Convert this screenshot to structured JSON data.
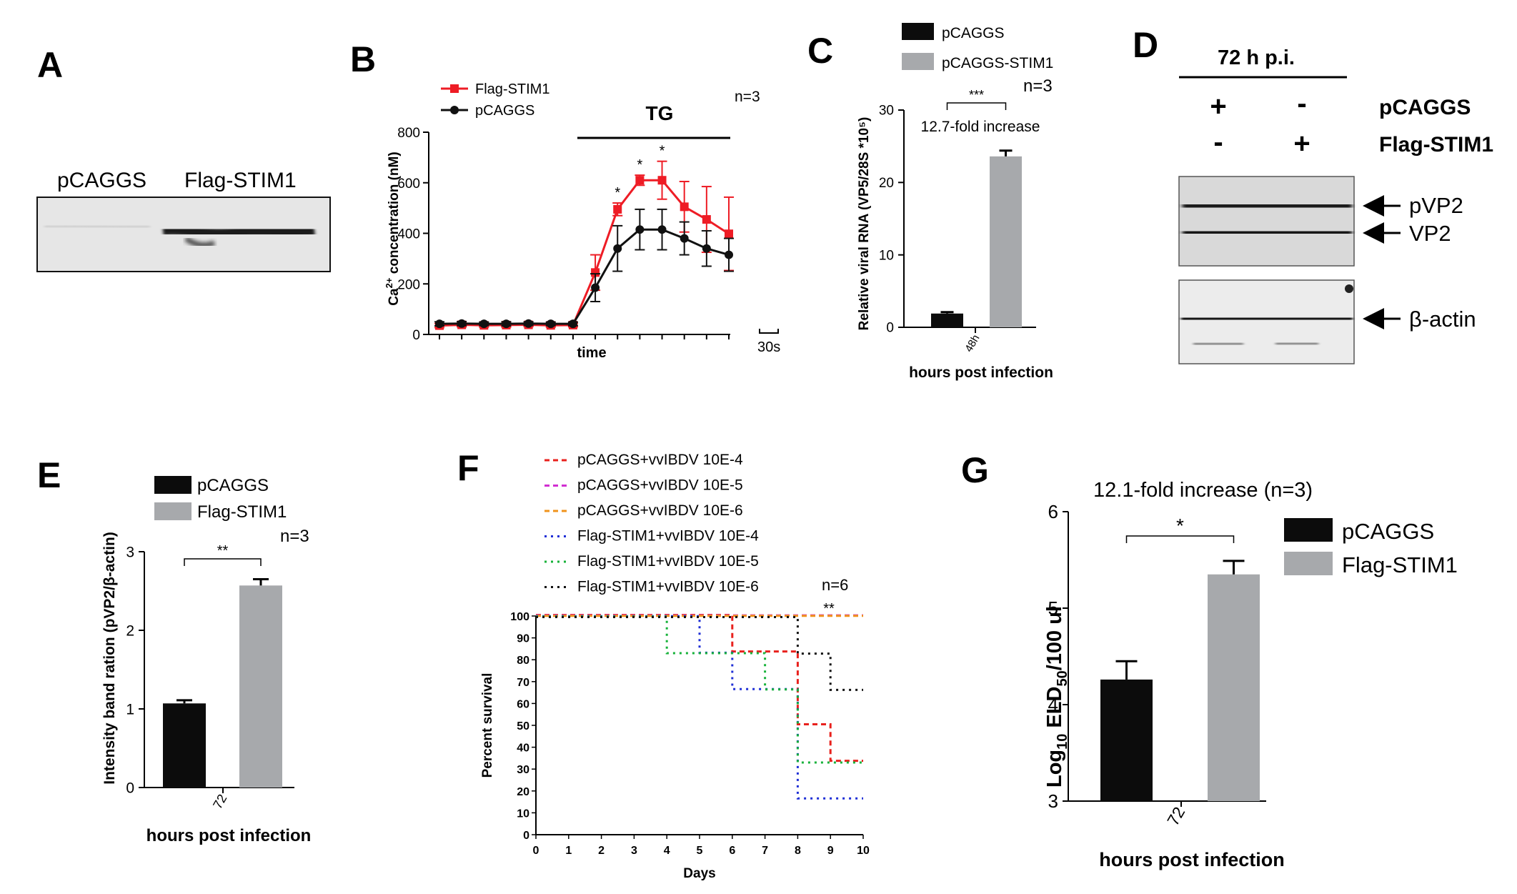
{
  "figure": {
    "panel_letters": [
      "A",
      "B",
      "C",
      "D",
      "E",
      "F",
      "G"
    ]
  },
  "colors": {
    "red": "#ee1c25",
    "black": "#111111",
    "gray": "#a7a9ac",
    "dark_bar": "#0c0c0c"
  },
  "panelA": {
    "lanes": [
      "pCAGGS",
      "Flag-STIM1"
    ]
  },
  "panelD": {
    "header": "72 h p.i.",
    "row_labels": [
      "pCAGGS",
      "Flag-STIM1"
    ],
    "row1_signs": [
      "+",
      "-"
    ],
    "row2_signs": [
      "-",
      "+"
    ],
    "band_labels": [
      "pVP2",
      "VP2",
      "β-actin"
    ]
  },
  "chart_data": [
    {
      "panel": "B",
      "type": "line",
      "ylabel_prefix": "Ca",
      "ylabel_sup": "2+",
      "ylabel_suffix": " concentration (nM)",
      "xlabel": "time",
      "ylim": [
        0,
        800
      ],
      "yticks": [
        0,
        200,
        400,
        600,
        800
      ],
      "treatment": "TG",
      "n_label": "n=3",
      "scale_label": "30s",
      "x": [
        0,
        1,
        2,
        3,
        4,
        5,
        6,
        7,
        8,
        9,
        10,
        11,
        12,
        13
      ],
      "series": [
        {
          "name": "Flag-STIM1",
          "color": "#ee1c25",
          "marker": "square",
          "values": [
            35,
            38,
            36,
            37,
            38,
            36,
            37,
            245,
            495,
            610,
            610,
            505,
            455,
            398
          ],
          "errors": [
            8,
            8,
            7,
            8,
            7,
            7,
            7,
            70,
            25,
            20,
            75,
            100,
            130,
            145
          ]
        },
        {
          "name": "pCAGGS",
          "color": "#111111",
          "marker": "circle",
          "values": [
            42,
            43,
            42,
            42,
            43,
            42,
            42,
            185,
            340,
            415,
            415,
            380,
            340,
            315
          ],
          "errors": [
            8,
            8,
            7,
            8,
            7,
            7,
            7,
            55,
            90,
            80,
            80,
            65,
            70,
            65
          ]
        }
      ],
      "significance": [
        {
          "x": 8,
          "label": "*"
        },
        {
          "x": 9,
          "label": "*"
        },
        {
          "x": 10,
          "label": "*"
        }
      ]
    },
    {
      "panel": "C",
      "type": "bar",
      "ylabel": "Relative viral RNA (VP5/28S *10⁵)",
      "xlabel": "hours post infection",
      "categories": [
        "48h"
      ],
      "ylim": [
        0,
        30
      ],
      "yticks": [
        0,
        10,
        20,
        30
      ],
      "series": [
        {
          "name": "pCAGGS",
          "color": "#0c0c0c",
          "values": [
            1.9
          ],
          "errors": [
            0.2
          ]
        },
        {
          "name": "pCAGGS-STIM1",
          "color": "#a7a9ac",
          "values": [
            23.6
          ],
          "errors": [
            0.8
          ]
        }
      ],
      "n_label": "n=3",
      "significance": "***",
      "annotation": "12.7-fold increase"
    },
    {
      "panel": "E",
      "type": "bar",
      "ylabel": "Intensity band ration (pVP2/β-actin)",
      "xlabel": "hours post infection",
      "categories": [
        "72"
      ],
      "ylim": [
        0,
        3
      ],
      "yticks": [
        0,
        1,
        2,
        3
      ],
      "series": [
        {
          "name": "pCAGGS",
          "color": "#0c0c0c",
          "values": [
            1.07
          ],
          "errors": [
            0.04
          ]
        },
        {
          "name": "Flag-STIM1",
          "color": "#a7a9ac",
          "values": [
            2.57
          ],
          "errors": [
            0.08
          ]
        }
      ],
      "n_label": "n=3",
      "significance": "**"
    },
    {
      "panel": "F",
      "type": "line",
      "ylabel": "Percent survival",
      "xlabel": "Days",
      "xlim": [
        0,
        10
      ],
      "xticks": [
        0,
        1,
        2,
        3,
        4,
        5,
        6,
        7,
        8,
        9,
        10
      ],
      "ylim": [
        0,
        100
      ],
      "yticks": [
        0,
        10,
        20,
        30,
        40,
        50,
        60,
        70,
        80,
        90,
        100
      ],
      "n_label": "n=6",
      "significance": "**",
      "series": [
        {
          "name": "pCAGGS+vvIBDV 10E-4",
          "color": "#e8211d",
          "steps": [
            [
              0,
              100
            ],
            [
              6,
              83.3
            ],
            [
              8,
              50
            ],
            [
              9,
              33.3
            ],
            [
              10,
              33.3
            ]
          ]
        },
        {
          "name": "pCAGGS+vvIBDV 10E-5",
          "color": "#d12ed1",
          "steps": [
            [
              0,
              100
            ],
            [
              10,
              100
            ]
          ]
        },
        {
          "name": "pCAGGS+vvIBDV 10E-6",
          "color": "#f0931c",
          "steps": [
            [
              0,
              100
            ],
            [
              10,
              100
            ]
          ]
        },
        {
          "name": "Flag-STIM1+vvIBDV 10E-4",
          "color": "#1f2fd6",
          "steps": [
            [
              0,
              100
            ],
            [
              5,
              83.3
            ],
            [
              6,
              66.7
            ],
            [
              8,
              16.7
            ],
            [
              10,
              16.7
            ]
          ]
        },
        {
          "name": "Flag-STIM1+vvIBDV 10E-5",
          "color": "#17b23a",
          "steps": [
            [
              0,
              100
            ],
            [
              4,
              83.3
            ],
            [
              7,
              66.7
            ],
            [
              8,
              33.3
            ],
            [
              10,
              33.3
            ]
          ]
        },
        {
          "name": "Flag-STIM1+vvIBDV 10E-6",
          "color": "#111111",
          "steps": [
            [
              0,
              100
            ],
            [
              8,
              83.3
            ],
            [
              9,
              66.7
            ],
            [
              10,
              66.7
            ]
          ]
        }
      ]
    },
    {
      "panel": "G",
      "type": "bar",
      "ylabel": "Log10 ELD50/100 ul",
      "ylabel_parts": [
        "Log",
        "10",
        " ELD",
        "50",
        "/100 ul"
      ],
      "xlabel": "hours post infection",
      "categories": [
        "72"
      ],
      "ylim": [
        3,
        6
      ],
      "yticks": [
        3,
        4,
        5,
        6
      ],
      "series": [
        {
          "name": "pCAGGS",
          "color": "#0c0c0c",
          "values": [
            4.26
          ],
          "errors": [
            0.19
          ]
        },
        {
          "name": "Flag-STIM1",
          "color": "#a7a9ac",
          "values": [
            5.35
          ],
          "errors": [
            0.14
          ]
        }
      ],
      "title": "12.1-fold increase  (n=3)",
      "significance": "*"
    }
  ]
}
